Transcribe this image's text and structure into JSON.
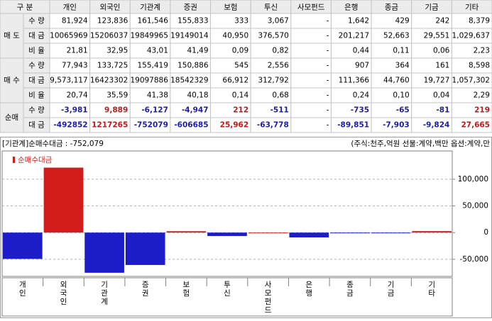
{
  "table": {
    "header": [
      "구 분",
      "개인",
      "외국인",
      "기관계",
      "증권",
      "보험",
      "투신",
      "사모펀드",
      "은행",
      "종금",
      "기금",
      "기타"
    ],
    "groups": [
      {
        "name": "매 도",
        "rows": [
          {
            "label": "수 량",
            "cells": [
              "81,924",
              "123,836",
              "161,546",
              "155,833",
              "333",
              "3,067",
              "-",
              "1,642",
              "429",
              "242",
              "8,379"
            ]
          },
          {
            "label": "대 금",
            "cells": [
              "10065969",
              "15206037",
              "19849965",
              "19149014",
              "40,950",
              "376,570",
              "-",
              "201,217",
              "52,663",
              "29,551",
              "1,029,637"
            ]
          },
          {
            "label": "비 율",
            "cells": [
              "21,81",
              "32,95",
              "43,01",
              "41,49",
              "0,09",
              "0,82",
              "-",
              "0,44",
              "0,11",
              "0,06",
              "2,23"
            ]
          }
        ]
      },
      {
        "name": "매 수",
        "rows": [
          {
            "label": "수 량",
            "cells": [
              "77,943",
              "133,725",
              "155,419",
              "150,886",
              "545",
              "2,556",
              "-",
              "907",
              "364",
              "161",
              "8,598"
            ]
          },
          {
            "label": "대 금",
            "cells": [
              "9,573,117",
              "16423302",
              "19097886",
              "18542329",
              "66,912",
              "312,792",
              "-",
              "111,366",
              "44,760",
              "19,727",
              "1,057,302"
            ]
          },
          {
            "label": "비 율",
            "cells": [
              "20,74",
              "35,59",
              "41,38",
              "40,18",
              "0,14",
              "0,68",
              "-",
              "0,24",
              "0,10",
              "0,04",
              "2,29"
            ]
          }
        ]
      },
      {
        "name": "순매",
        "rows": [
          {
            "label": "수 량",
            "cells": [
              "-3,981",
              "9,889",
              "-6,127",
              "-4,947",
              "212",
              "-511",
              "-",
              "-735",
              "-65",
              "-81",
              "219"
            ]
          },
          {
            "label": "대 금",
            "cells": [
              "-492852",
              "1217265",
              "-752079",
              "-606685",
              "25,962",
              "-63,778",
              "-",
              "-89,851",
              "-7,903",
              "-9,824",
              "27,665"
            ]
          }
        ]
      }
    ]
  },
  "chart_data": {
    "type": "bar",
    "title": "[기관계]순매수대금 : -752,079",
    "subtitle": "(주식:천주,억원 선물:계약,백만 옵션:계약,만",
    "categories": [
      "개인",
      "외국인",
      "기관계",
      "증권",
      "보험",
      "투신",
      "사모펀드",
      "은행",
      "종금",
      "기금",
      "기타"
    ],
    "series": [
      {
        "name": "순매수대금",
        "color": "#d21c1c",
        "negative_color": "#1c1cc8",
        "values": [
          -49285,
          121727,
          -75208,
          -60669,
          2596,
          -6378,
          0,
          -8985,
          -790,
          -982,
          2767
        ]
      }
    ],
    "ylim": [
      -82000,
      153000
    ],
    "yticks": [
      {
        "value": 100000,
        "label": "100,000"
      },
      {
        "value": 50000,
        "label": "50,000"
      },
      0,
      {
        "value": -50000,
        "label": "-50,000"
      }
    ],
    "grid": true
  }
}
